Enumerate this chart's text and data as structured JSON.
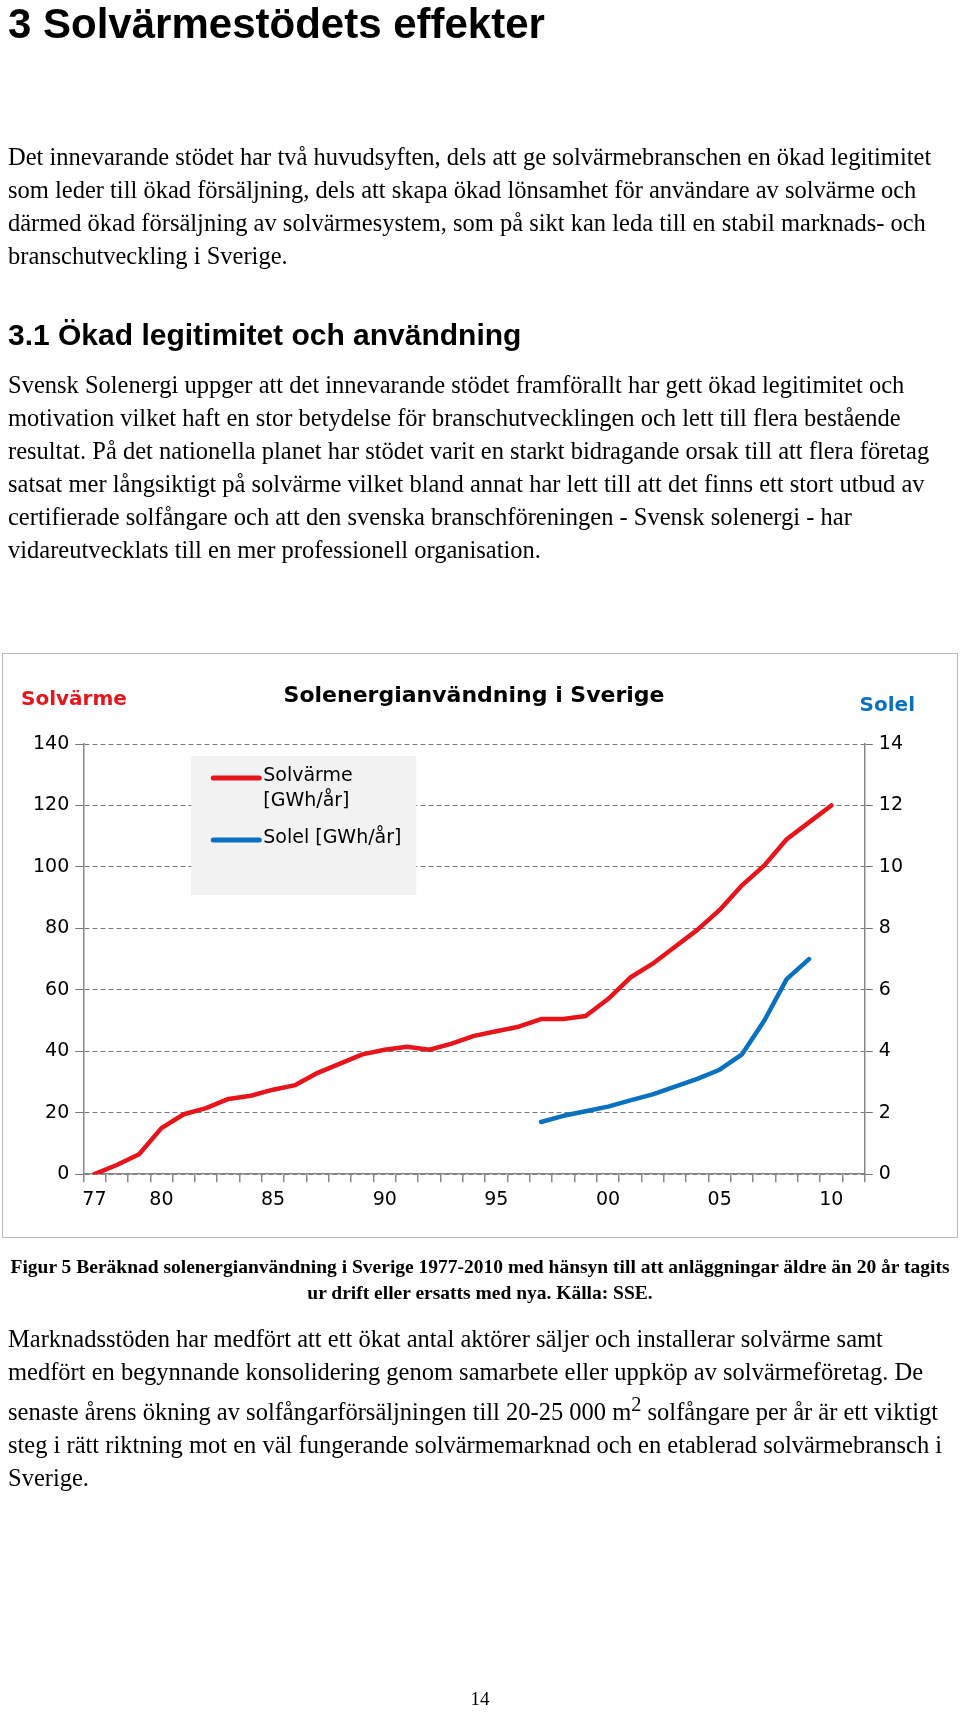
{
  "chart_data": {
    "type": "line",
    "title": "Solenergianvändning i Sverige",
    "ylabel": "Solvärme",
    "y2label": "Solel",
    "categories": [
      "77",
      null,
      null,
      "80",
      null,
      null,
      null,
      null,
      "85",
      null,
      null,
      null,
      null,
      "90",
      null,
      null,
      null,
      null,
      "95",
      null,
      null,
      null,
      null,
      "00",
      null,
      null,
      null,
      null,
      "05",
      null,
      null,
      null,
      null,
      "10",
      null
    ],
    "series": [
      {
        "name": "Solvärme [GWh/år]",
        "color": "#e8141b",
        "values": [
          0,
          3,
          6.5,
          15,
          19.5,
          21.5,
          24.5,
          25.5,
          27.5,
          29,
          33,
          36,
          39,
          40.5,
          41.5,
          40.5,
          42.5,
          45,
          46.5,
          48,
          50.5,
          50.5,
          51.5,
          57,
          64,
          68.5,
          74,
          79.5,
          86,
          94,
          100.5,
          109,
          114.5,
          120,
          null
        ]
      },
      {
        "name": "Solel [GWh/år]",
        "color": "#0a70c0",
        "axis": "y2",
        "values": [
          null,
          null,
          null,
          null,
          null,
          null,
          null,
          null,
          null,
          null,
          null,
          null,
          null,
          null,
          null,
          null,
          null,
          null,
          null,
          null,
          1.7,
          1.9,
          2.05,
          2.2,
          2.4,
          2.6,
          2.85,
          3.1,
          3.4,
          3.9,
          5.0,
          6.35,
          7.0,
          null,
          null
        ]
      }
    ],
    "ylim": [
      0,
      140
    ],
    "yticks": [
      0,
      20,
      40,
      60,
      80,
      100,
      120,
      140
    ],
    "y2lim": [
      0,
      14
    ],
    "y2ticks": [
      0,
      2,
      4,
      6,
      8,
      10,
      12,
      14
    ],
    "grid": "y",
    "legend": "top left",
    "marker": "none",
    "line_style": "solid",
    "annotations": [
      "3 Solvärmestödets effekter",
      "Det innevarande stödet har två huvudsyften, dels att ge solvärmebranschen en ökad legitimitet som leder till ökad försäljning, dels att skapa ökad lönsamhet för användare av solvärme och därmed ökad försäljning av solvärmesystem, som på sikt kan leda till en stabil marknads- och branschutveckling i Sverige.",
      "3.1 Ökad legitimitet och användning",
      "Svensk Solenergi uppger att det innevarande stödet framförallt har gett ökad legitimitet och motivation vilket haft en stor betydelse för branschutvecklingen och lett till flera bestående resultat. På det nationella planet har stödet varit en starkt bidragande orsak till att flera företag satsat mer långsiktigt på solvärme vilket bland annat har lett till att det finns ett stort utbud av certifierade solfångare och att den svenska branschföreningen - Svensk solenergi - har vidareutvecklats till en mer professionell organisation.",
      "Figur 5 Beräknad solenergianvändning i Sverige 1977-2010 med hänsyn till att anläggningar äldre än 20 år tagits ur drift eller ersatts med nya.  Källa: SSE.",
      "Marknadsstöden har medfört att ett ökat antal aktörer säljer och installerar solvärme samt medfört en begynnande konsolidering genom samarbete eller uppköp av solvärmeföretag.  De senaste årens ökning av solfångarförsäljningen till 20-25 000 m$^{2}$ solfångare per år är ett viktigt steg i rätt riktning mot en väl fungerande solvärmemarknad och en etablerad solvärmebransch i Sverige.",
      "14"
    ]
  }
}
